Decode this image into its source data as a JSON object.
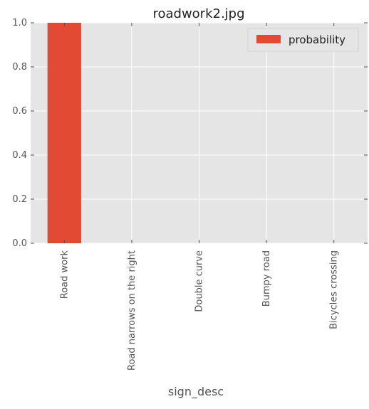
{
  "chart_data": {
    "type": "bar",
    "title": "roadwork2.jpg",
    "xlabel": "sign_desc",
    "ylabel": "",
    "categories": [
      "Road work",
      "Road narrows on the right",
      "Double curve",
      "Bumpy road",
      "Bicycles crossing"
    ],
    "series": [
      {
        "name": "probability",
        "values": [
          1.0,
          0.0,
          0.0,
          0.0,
          0.0
        ],
        "color": "#E24A33"
      }
    ],
    "ylim": [
      0,
      1.0
    ],
    "yticks": [
      0.0,
      0.2,
      0.4,
      0.6,
      0.8,
      1.0
    ],
    "ytick_labels": [
      "0.0",
      "0.2",
      "0.4",
      "0.6",
      "0.8",
      "1.0"
    ],
    "grid": true,
    "legend_position": "top-right",
    "style": {
      "plot_background": "#E5E5E5",
      "grid_color": "#FFFFFF",
      "text_color": "#555555"
    }
  }
}
